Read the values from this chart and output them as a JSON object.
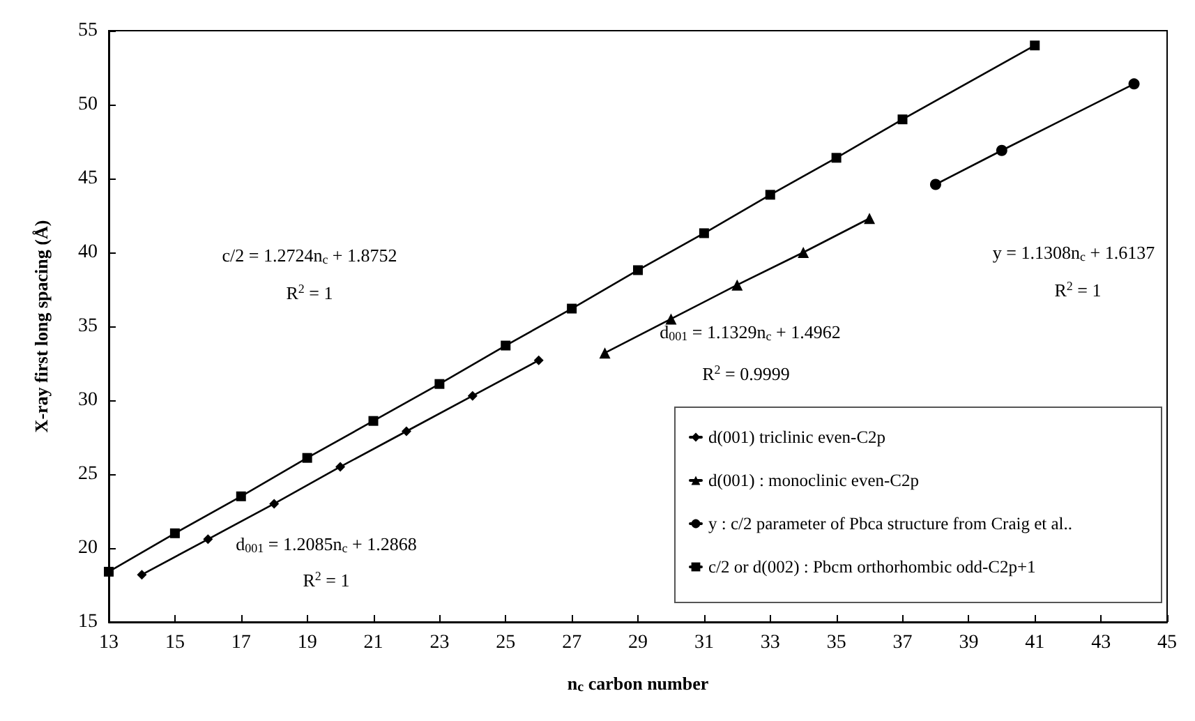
{
  "chart_data": {
    "type": "line",
    "xlabel": "n$_{c}$ carbon number",
    "ylabel": "X-ray first long spacing (Å)",
    "xlim": [
      13,
      45
    ],
    "xticks": [
      13,
      15,
      17,
      19,
      21,
      23,
      25,
      27,
      29,
      31,
      33,
      35,
      37,
      39,
      41,
      43,
      45
    ],
    "ylim": [
      15,
      55
    ],
    "yticks": [
      15,
      20,
      25,
      30,
      35,
      40,
      45,
      50,
      55
    ],
    "grid": false,
    "legend": "bottom right",
    "line_style": "solid",
    "series": [
      {
        "name": "d(001) triclinic even-C2p",
        "color": "#000000",
        "marker": "diamond",
        "x": [
          14,
          16,
          18,
          20,
          22,
          24,
          26
        ],
        "values": [
          18.2,
          20.6,
          23.0,
          25.5,
          27.9,
          30.3,
          32.7
        ]
      },
      {
        "name": "d(001) : monoclinic even-C2p",
        "color": "#000000",
        "marker": "triangle",
        "x": [
          28,
          30,
          32,
          34,
          36
        ],
        "values": [
          33.2,
          35.5,
          37.8,
          40.0,
          42.3
        ]
      },
      {
        "name": "y : c/2 parameter of Pbca structure from Craig et al..",
        "color": "#000000",
        "marker": "circle",
        "x": [
          38,
          40,
          44
        ],
        "values": [
          44.6,
          46.9,
          51.4
        ]
      },
      {
        "name": "c/2 or d(002) : Pbcm orthorhombic odd-C2p+1",
        "color": "#000000",
        "marker": "square",
        "x": [
          13,
          15,
          17,
          19,
          21,
          23,
          25,
          27,
          29,
          31,
          33,
          35,
          37,
          41
        ],
        "values": [
          18.4,
          21.0,
          23.5,
          26.1,
          28.6,
          31.1,
          33.7,
          36.2,
          38.8,
          41.3,
          43.9,
          46.4,
          49.0,
          54.0
        ]
      }
    ],
    "annotations": [
      "c/2 = 1.2724n$_{c}$ + 1.8752",
      "R$^{2}$ = 1",
      "d$_{001}$ = 1.1329n$_{c}$ + 1.4962",
      "R$^{2}$ = 0.9999",
      "d$_{001}$ = 1.2085n$_{c}$ + 1.2868",
      "R$^{2}$ = 1",
      "y = 1.1308n$_{c}$ + 1.6137",
      "R$^{2}$ = 1"
    ]
  }
}
